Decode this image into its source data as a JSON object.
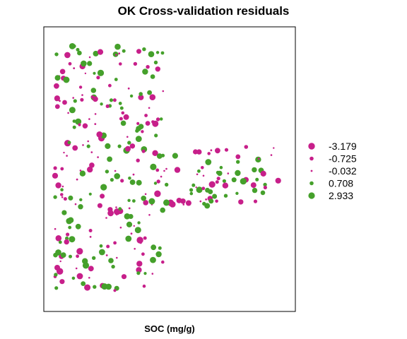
{
  "chart_data": {
    "type": "scatter",
    "title": "OK Cross-validation residuals",
    "xlabel": "SOC (mg/g)",
    "ylabel": "",
    "colors": {
      "negative": "#c71f8a",
      "positive": "#45a02b"
    },
    "legend": {
      "position": "right",
      "entries": [
        {
          "label": "-3.179",
          "value": -3.179
        },
        {
          "label": "-0.725",
          "value": -0.725
        },
        {
          "label": "-0.032",
          "value": -0.032
        },
        {
          "label": "0.708",
          "value": 0.708
        },
        {
          "label": "2.933",
          "value": 2.933
        }
      ]
    }
  }
}
